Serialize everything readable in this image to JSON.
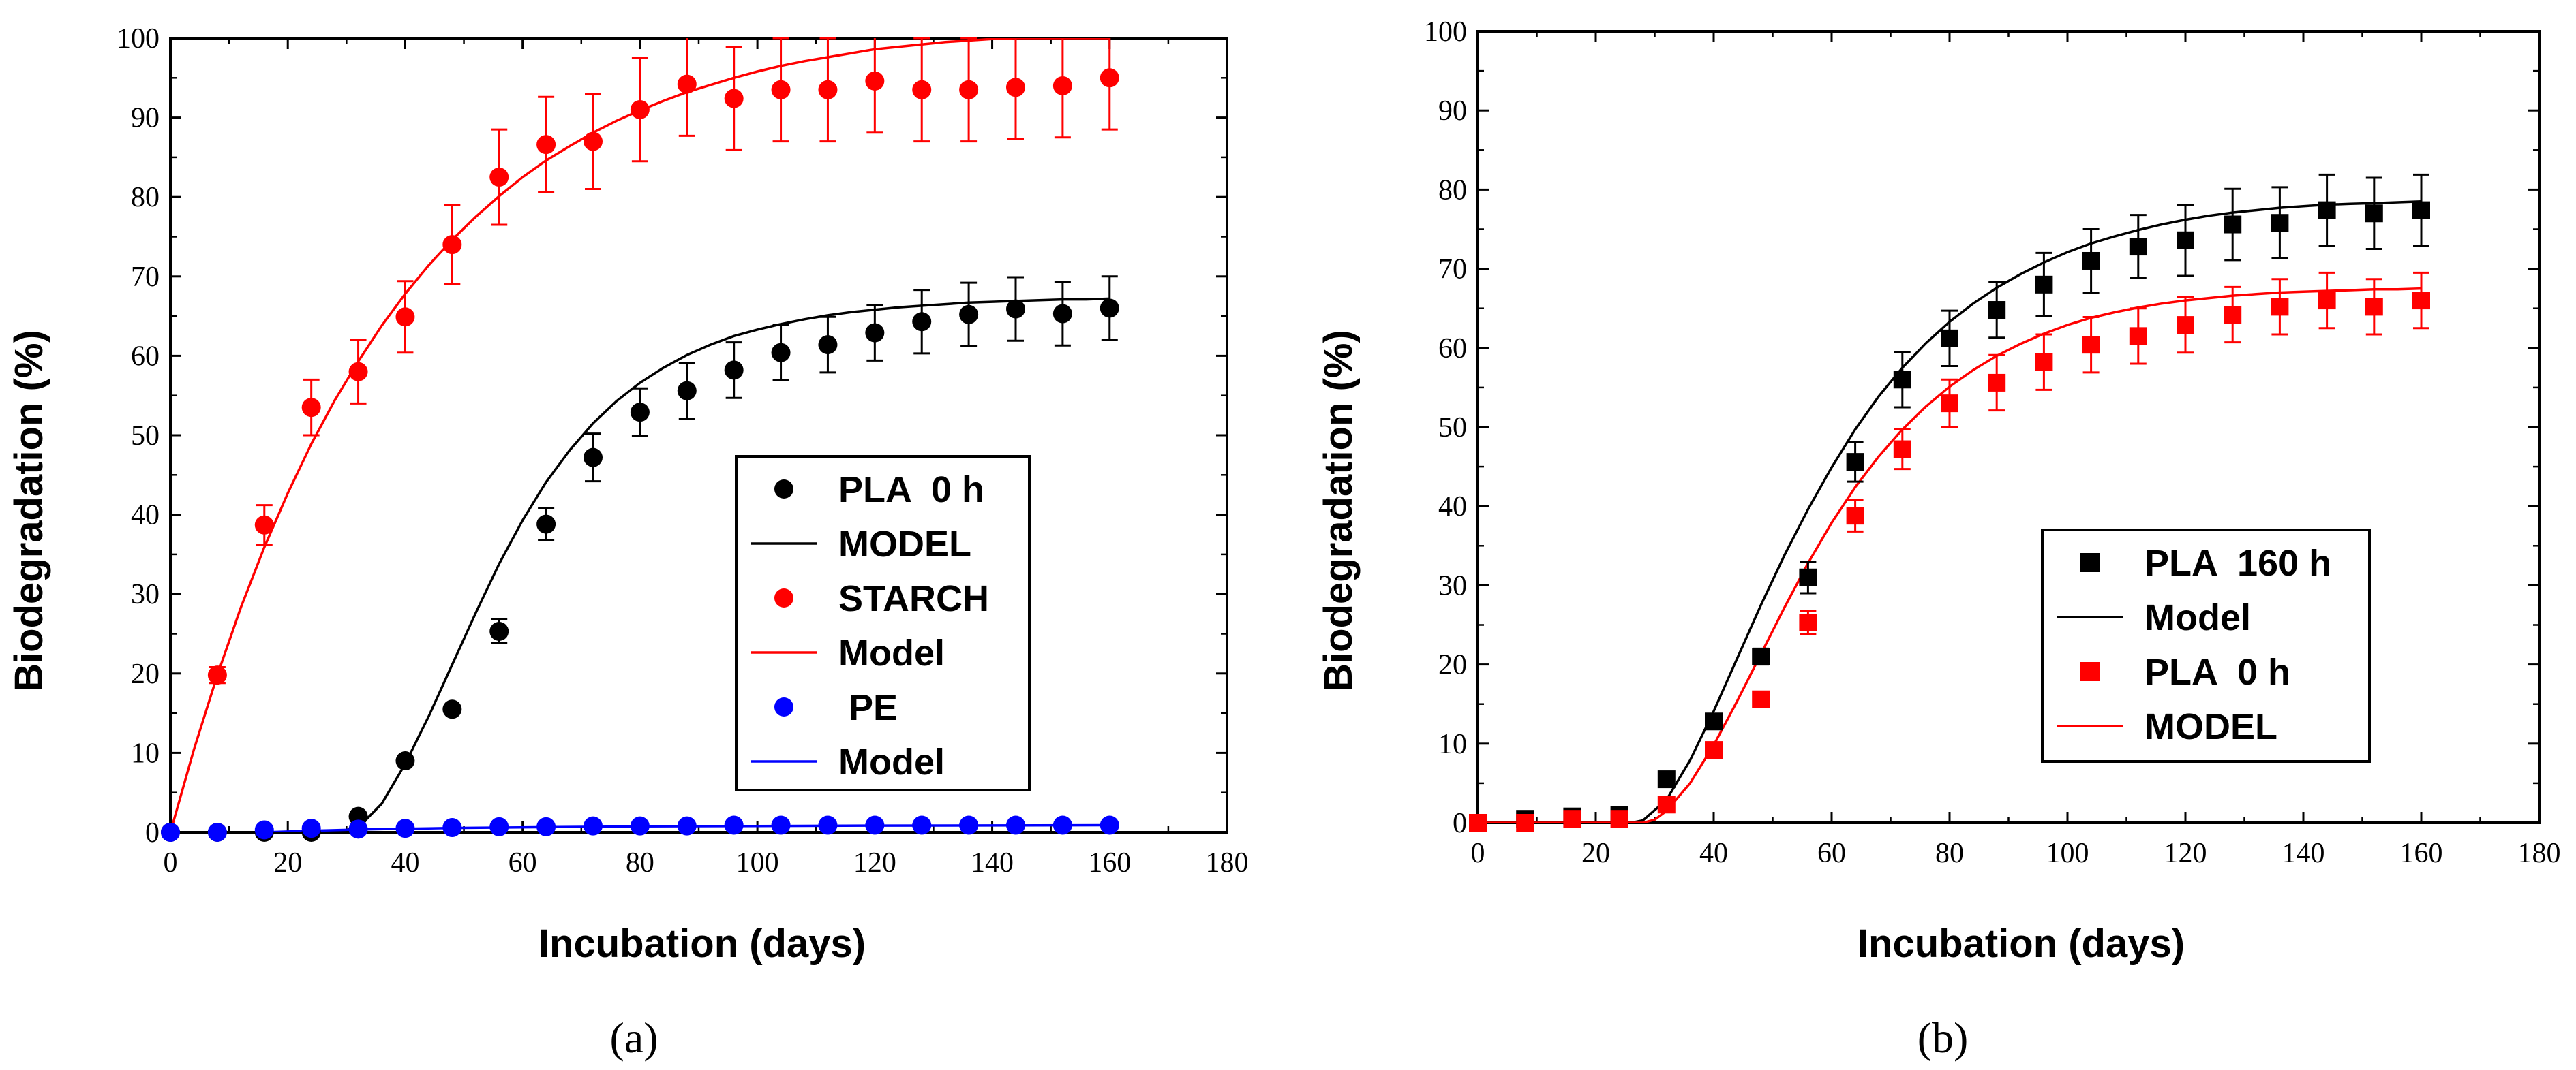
{
  "chart_data": [
    {
      "panel_label": "(a)",
      "type": "scatter",
      "xlabel": "Incubation (days)",
      "ylabel": "Biodegradation (%)",
      "xlim": [
        0,
        180
      ],
      "ylim": [
        0,
        100
      ],
      "xticks": [
        "0",
        "20",
        "40",
        "60",
        "80",
        "100",
        "120",
        "140",
        "160",
        "180"
      ],
      "yticks": [
        "0",
        "10",
        "20",
        "30",
        "40",
        "50",
        "60",
        "70",
        "80",
        "90",
        "100"
      ],
      "series": [
        {
          "name": "PLA  0 h",
          "kind": "points",
          "marker": "circle",
          "color": "#000000",
          "x": [
            0,
            8,
            16,
            24,
            32,
            40,
            48,
            56,
            64,
            72,
            80,
            88,
            96,
            104,
            112,
            120,
            128,
            136,
            144,
            152,
            160
          ],
          "y": [
            0,
            0,
            0,
            0,
            2,
            9,
            15.5,
            25.3,
            38.8,
            47.2,
            52.9,
            55.6,
            58.2,
            60.4,
            61.4,
            62.9,
            64.3,
            65.2,
            65.9,
            65.3,
            66
          ],
          "err": [
            0,
            0,
            0,
            0,
            0,
            0,
            0,
            1.5,
            2,
            3,
            3,
            3.5,
            3.5,
            3.5,
            3.5,
            3.5,
            4,
            4,
            4,
            4,
            4
          ]
        },
        {
          "name": "MODEL",
          "kind": "line",
          "color": "#000000",
          "x": [
            0,
            4,
            8,
            12,
            16,
            20,
            24,
            28,
            32,
            36,
            40,
            44,
            48,
            52,
            56,
            60,
            64,
            68,
            72,
            76,
            80,
            84,
            88,
            92,
            96,
            100,
            104,
            108,
            112,
            116,
            120,
            124,
            128,
            132,
            136,
            140,
            144,
            148,
            152,
            156,
            160
          ],
          "y": [
            0,
            0,
            0,
            0,
            0,
            0,
            0,
            0,
            0.6,
            3.6,
            8.6,
            14.6,
            21.1,
            27.6,
            33.8,
            39.3,
            44.1,
            48.1,
            51.5,
            54.3,
            56.6,
            58.5,
            60.1,
            61.4,
            62.5,
            63.3,
            64.0,
            64.6,
            65.1,
            65.5,
            65.8,
            66.1,
            66.3,
            66.5,
            66.7,
            66.8,
            66.9,
            67.0,
            67.1,
            67.1,
            67.2
          ]
        },
        {
          "name": "STARCH",
          "kind": "points",
          "marker": "circle",
          "color": "#ff0000",
          "x": [
            8,
            16,
            24,
            32,
            40,
            48,
            56,
            64,
            72,
            80,
            88,
            96,
            104,
            112,
            120,
            128,
            136,
            144,
            152,
            160
          ],
          "y": [
            19.8,
            38.7,
            53.5,
            58,
            64.9,
            74,
            82.5,
            86.6,
            87,
            91,
            94.2,
            92.4,
            93.5,
            93.5,
            94.6,
            93.5,
            93.5,
            93.8,
            94,
            95
          ],
          "err": [
            1,
            2.5,
            3.5,
            4,
            4.5,
            5,
            6,
            6,
            6,
            6.5,
            6.5,
            6.5,
            6.5,
            6.5,
            6.5,
            6.5,
            6.5,
            6.5,
            6.5,
            6.5
          ]
        },
        {
          "name": "Model",
          "kind": "line",
          "color": "#ff0000",
          "x": [
            0,
            4,
            8,
            12,
            16,
            20,
            24,
            28,
            32,
            36,
            40,
            44,
            48,
            52,
            56,
            60,
            64,
            68,
            72,
            76,
            80,
            84,
            88,
            92,
            96,
            100,
            104,
            108,
            112,
            116,
            120,
            124,
            128,
            132,
            136,
            140,
            144,
            148,
            152,
            156,
            160
          ],
          "y": [
            0,
            10.4,
            19.8,
            28.3,
            35.9,
            42.7,
            48.9,
            54.4,
            59.3,
            63.8,
            67.8,
            71.4,
            74.6,
            77.5,
            80.1,
            82.5,
            84.6,
            86.4,
            88.1,
            89.6,
            90.9,
            92.1,
            93.2,
            94.1,
            95.0,
            95.8,
            96.5,
            97.1,
            97.6,
            98.1,
            98.6,
            98.9,
            99.2,
            99.5,
            99.7,
            99.9,
            100.0,
            100.0,
            100.0,
            100.0,
            100.0
          ]
        },
        {
          "name": " PE",
          "kind": "points",
          "marker": "circle",
          "color": "#0000ff",
          "x": [
            0,
            8,
            16,
            24,
            32,
            40,
            48,
            56,
            64,
            72,
            80,
            88,
            96,
            104,
            112,
            120,
            128,
            136,
            144,
            152,
            160
          ],
          "y": [
            0,
            0,
            0.3,
            0.5,
            0.4,
            0.5,
            0.6,
            0.7,
            0.7,
            0.8,
            0.8,
            0.8,
            0.9,
            0.9,
            0.9,
            0.9,
            0.9,
            0.9,
            0.9,
            0.9,
            0.9
          ],
          "err": []
        },
        {
          "name": "Model",
          "kind": "line",
          "color": "#0000ff",
          "x": [
            0,
            8,
            16,
            24,
            32,
            40,
            48,
            56,
            64,
            80,
            100,
            120,
            140,
            160
          ],
          "y": [
            -0.6,
            -0.3,
            0,
            0.2,
            0.35,
            0.45,
            0.55,
            0.6,
            0.65,
            0.75,
            0.8,
            0.85,
            0.87,
            0.9
          ]
        }
      ],
      "legend_location": "center-right"
    },
    {
      "panel_label": "(b)",
      "type": "scatter",
      "xlabel": "Incubation (days)",
      "ylabel": "Biodegradation (%)",
      "xlim": [
        0,
        180
      ],
      "ylim": [
        0,
        100
      ],
      "xticks": [
        "0",
        "20",
        "40",
        "60",
        "80",
        "100",
        "120",
        "140",
        "160",
        "180"
      ],
      "yticks": [
        "0",
        "10",
        "20",
        "30",
        "40",
        "50",
        "60",
        "70",
        "80",
        "90",
        "100"
      ],
      "series": [
        {
          "name": "PLA  160 h",
          "kind": "points",
          "marker": "square",
          "color": "#000000",
          "x": [
            0,
            8,
            16,
            24,
            32,
            40,
            48,
            56,
            64,
            72,
            80,
            88,
            96,
            104,
            112,
            120,
            128,
            136,
            144,
            152,
            160
          ],
          "y": [
            0,
            0.5,
            0.8,
            1,
            5.5,
            12.8,
            21,
            31,
            45.6,
            56,
            61.2,
            64.8,
            68,
            71,
            72.8,
            73.6,
            75.6,
            75.8,
            77.4,
            77,
            77.4
          ],
          "err": [
            0,
            0,
            0,
            0,
            0,
            0,
            1,
            2,
            2.5,
            3.5,
            3.5,
            3.5,
            4,
            4,
            4,
            4.5,
            4.5,
            4.5,
            4.5,
            4.5,
            4.5
          ]
        },
        {
          "name": "Model",
          "kind": "line",
          "color": "#000000",
          "x": [
            0,
            4,
            8,
            12,
            16,
            20,
            24,
            26,
            28,
            32,
            36,
            40,
            44,
            48,
            52,
            56,
            60,
            64,
            68,
            72,
            76,
            80,
            84,
            88,
            92,
            96,
            100,
            104,
            108,
            112,
            116,
            120,
            124,
            128,
            132,
            136,
            140,
            144,
            148,
            152,
            156,
            160
          ],
          "y": [
            0,
            0,
            0,
            0,
            0,
            0,
            0,
            0,
            0.3,
            2.9,
            7.9,
            14.1,
            20.8,
            27.5,
            33.8,
            39.6,
            44.9,
            49.7,
            53.9,
            57.5,
            60.6,
            63.3,
            65.6,
            67.6,
            69.3,
            70.8,
            72.1,
            73.2,
            74.1,
            74.9,
            75.6,
            76.2,
            76.7,
            77.1,
            77.4,
            77.7,
            77.9,
            78.1,
            78.2,
            78.3,
            78.4,
            78.5
          ]
        },
        {
          "name": "PLA  0 h",
          "kind": "points",
          "marker": "square",
          "color": "#ff0000",
          "x": [
            0,
            8,
            16,
            24,
            32,
            40,
            48,
            56,
            64,
            72,
            80,
            88,
            96,
            104,
            112,
            120,
            128,
            136,
            144,
            152,
            160
          ],
          "y": [
            0,
            0,
            0.5,
            0.5,
            2.3,
            9.2,
            15.6,
            25.3,
            38.8,
            47.2,
            53,
            55.6,
            58.2,
            60.4,
            61.5,
            62.9,
            64.2,
            65.2,
            66,
            65.2,
            66
          ],
          "err": [
            0,
            0,
            0,
            0,
            0,
            0,
            0,
            1.5,
            2,
            2.5,
            3,
            3.5,
            3.5,
            3.5,
            3.5,
            3.5,
            3.5,
            3.5,
            3.5,
            3.5,
            3.5
          ]
        },
        {
          "name": "MODEL",
          "kind": "line",
          "color": "#ff0000",
          "x": [
            0,
            4,
            8,
            12,
            16,
            20,
            24,
            28,
            30,
            32,
            36,
            40,
            44,
            48,
            52,
            56,
            60,
            64,
            68,
            72,
            76,
            80,
            84,
            88,
            92,
            96,
            100,
            104,
            108,
            112,
            116,
            120,
            124,
            128,
            132,
            136,
            140,
            144,
            148,
            152,
            156,
            160
          ],
          "y": [
            0,
            0,
            0,
            0,
            0,
            0,
            0,
            0,
            0.4,
            1.5,
            5.0,
            9.8,
            15.4,
            21.3,
            27.2,
            32.8,
            37.9,
            42.4,
            46.3,
            49.7,
            52.6,
            55.1,
            57.2,
            59.0,
            60.5,
            61.8,
            62.9,
            63.8,
            64.5,
            65.1,
            65.6,
            66.0,
            66.3,
            66.6,
            66.8,
            67.0,
            67.1,
            67.2,
            67.3,
            67.4,
            67.4,
            67.5
          ]
        }
      ],
      "legend_location": "center-right"
    }
  ]
}
